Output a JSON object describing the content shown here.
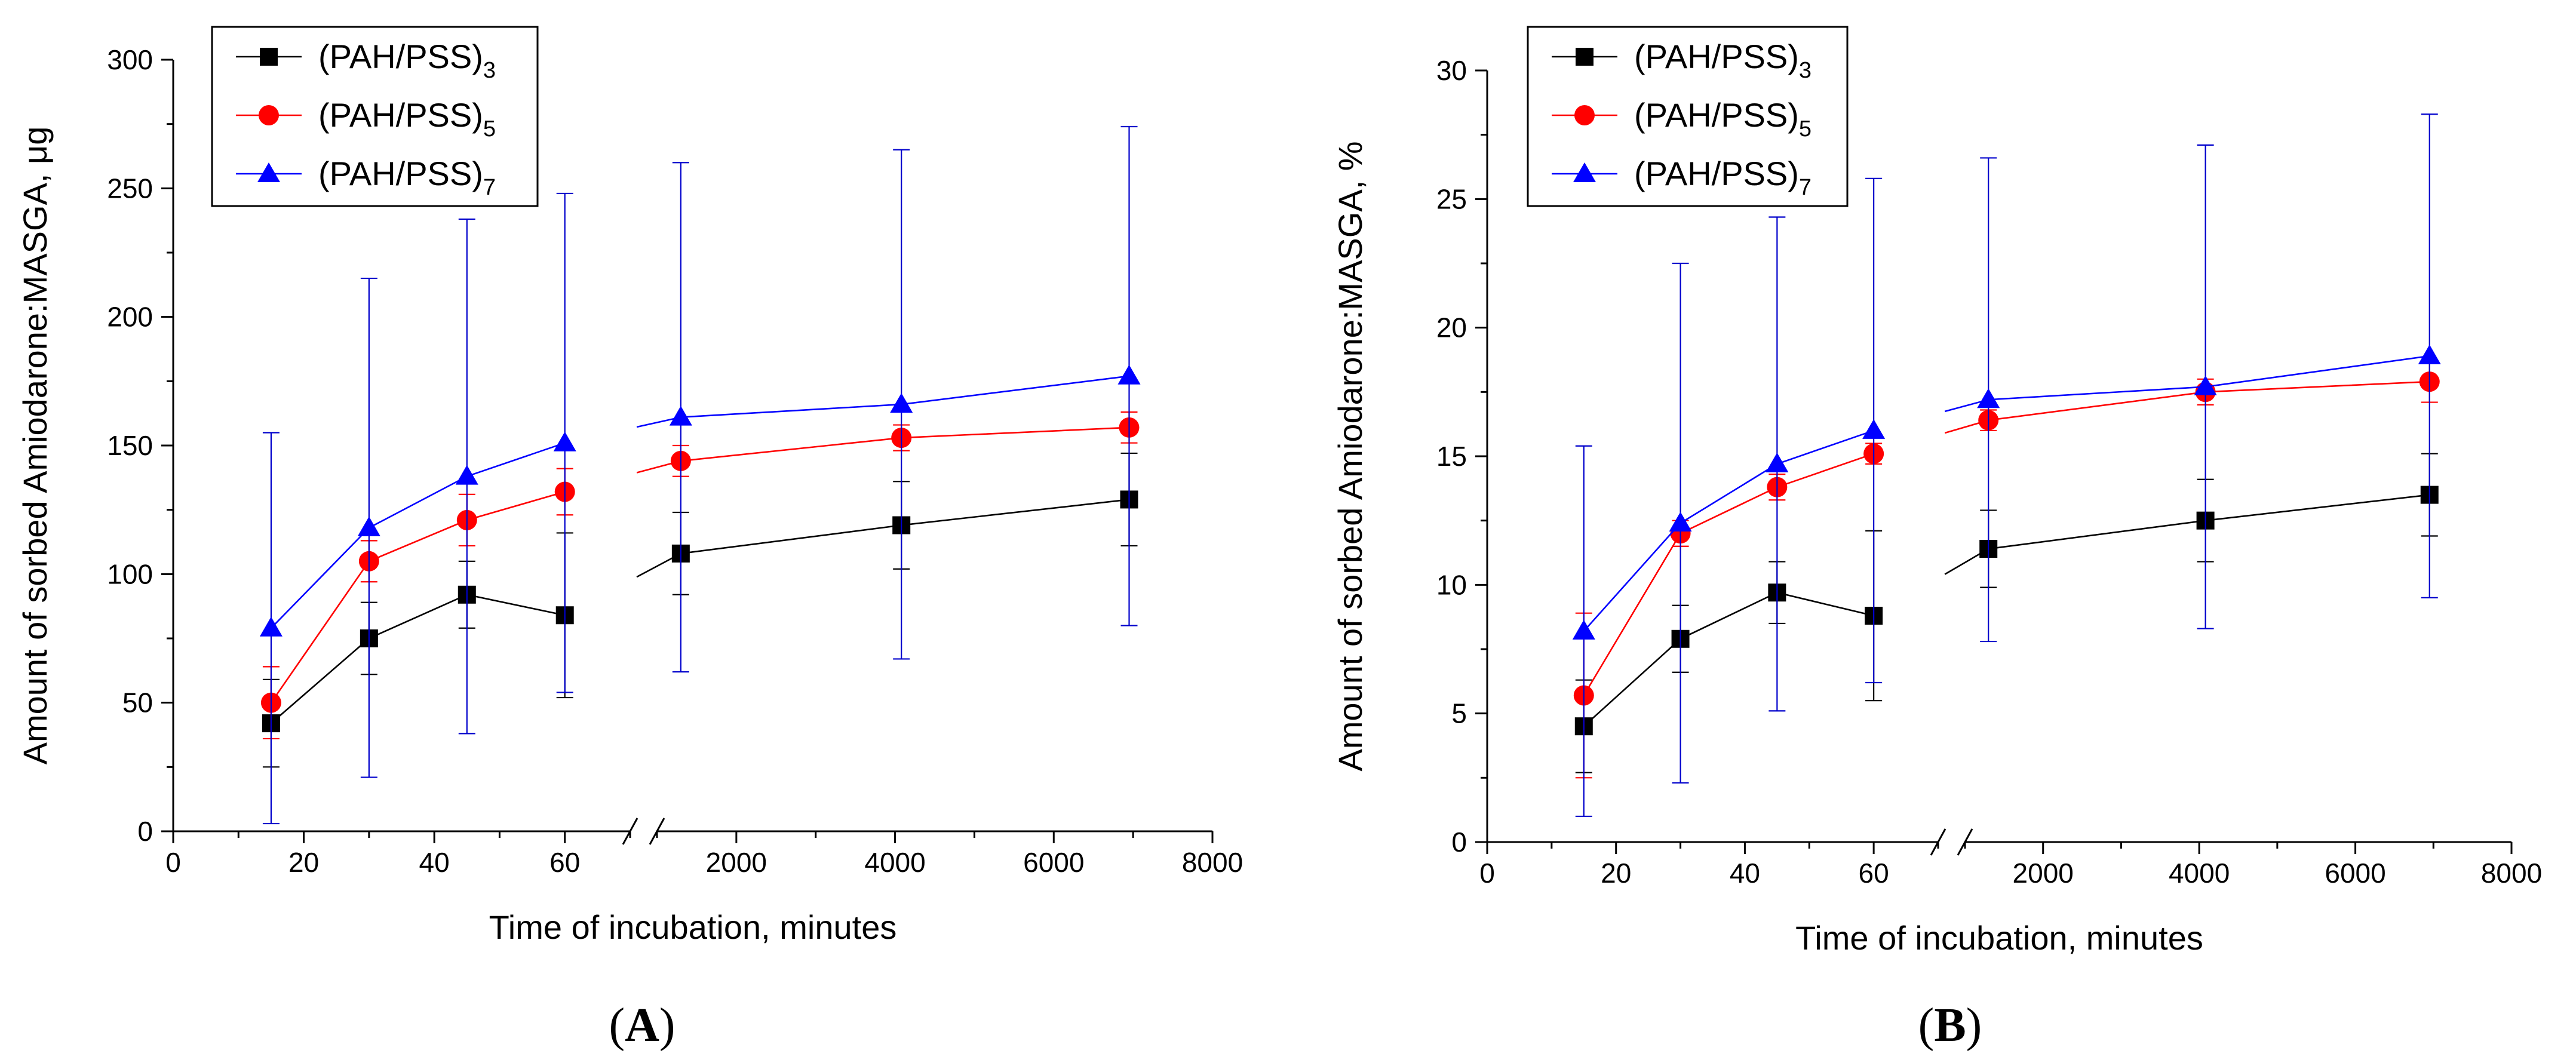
{
  "colors": {
    "series1": "#000000",
    "series2": "#ff0000",
    "series3": "#0000ff",
    "errorbar": "#0000cc"
  },
  "chart_data": [
    {
      "type": "line",
      "panel_label": "A",
      "panel_label_open": "(",
      "panel_label_close": ")",
      "xlabel": "Time of incubation, minutes",
      "ylabel": "Amount of sorbed Amiodarone:MASGA, μg",
      "ylim": [
        0,
        300
      ],
      "yticks": [
        "0",
        "50",
        "100",
        "150",
        "200",
        "250",
        "300"
      ],
      "xticks_left": [
        "0",
        "20",
        "40",
        "60"
      ],
      "xticks_right": [
        "2000",
        "4000",
        "6000",
        "8000"
      ],
      "x_break": true,
      "x": [
        15,
        30,
        45,
        60,
        1300,
        4080,
        6950
      ],
      "legend_position": "top-left",
      "series": [
        {
          "name": "(PAH/PSS)",
          "subscript": "3",
          "marker": "square",
          "color": "#000000",
          "values": [
            42,
            75,
            92,
            84,
            108,
            119,
            129
          ],
          "errors": [
            17,
            14,
            13,
            32,
            16,
            17,
            18
          ]
        },
        {
          "name": "(PAH/PSS)",
          "subscript": "5",
          "marker": "circle",
          "color": "#ff0000",
          "values": [
            50,
            105,
            121,
            132,
            144,
            153,
            157
          ],
          "errors": [
            14,
            8,
            10,
            9,
            6,
            5,
            6
          ]
        },
        {
          "name": "(PAH/PSS)",
          "subscript": "7",
          "marker": "triangle",
          "color": "#0000ff",
          "values": [
            79,
            118,
            138,
            151,
            161,
            166,
            177
          ],
          "errors": [
            76,
            97,
            100,
            97,
            99,
            99,
            97
          ]
        }
      ]
    },
    {
      "type": "line",
      "panel_label": "B",
      "panel_label_open": "(",
      "panel_label_close": ")",
      "xlabel": "Time of incubation, minutes",
      "ylabel": "Amount of sorbed Amiodarone:MASGA, %",
      "ylim": [
        0,
        30
      ],
      "yticks": [
        "0",
        "5",
        "10",
        "15",
        "20",
        "25",
        "30"
      ],
      "xticks_left": [
        "0",
        "20",
        "40",
        "60"
      ],
      "xticks_right": [
        "2000",
        "4000",
        "6000",
        "8000"
      ],
      "x_break": true,
      "x": [
        15,
        30,
        45,
        60,
        1300,
        4080,
        6950
      ],
      "legend_position": "top-left",
      "series": [
        {
          "name": "(PAH/PSS)",
          "subscript": "3",
          "marker": "square",
          "color": "#000000",
          "values": [
            4.5,
            7.9,
            9.7,
            8.8,
            11.4,
            12.5,
            13.5
          ],
          "errors": [
            1.8,
            1.3,
            1.2,
            3.3,
            1.5,
            1.6,
            1.6
          ]
        },
        {
          "name": "(PAH/PSS)",
          "subscript": "5",
          "marker": "circle",
          "color": "#ff0000",
          "values": [
            5.7,
            12.0,
            13.8,
            15.1,
            16.4,
            17.5,
            17.9
          ],
          "errors": [
            3.2,
            0.5,
            0.5,
            0.4,
            0.4,
            0.5,
            0.8
          ]
        },
        {
          "name": "(PAH/PSS)",
          "subscript": "7",
          "marker": "triangle",
          "color": "#0000ff",
          "values": [
            8.2,
            12.4,
            14.7,
            16.0,
            17.2,
            17.7,
            18.9
          ],
          "errors": [
            7.2,
            10.1,
            9.6,
            9.8,
            9.4,
            9.4,
            9.4
          ]
        }
      ]
    }
  ]
}
